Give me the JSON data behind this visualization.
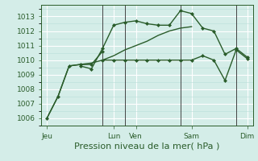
{
  "background_color": "#d4ede8",
  "grid_color_major": "#ffffff",
  "grid_color_minor": "#b8ddd8",
  "line_color": "#2a5c2a",
  "xlabel": "Pression niveau de la mer( hPa )",
  "xlabel_fontsize": 8,
  "yticks": [
    1006,
    1007,
    1008,
    1009,
    1010,
    1011,
    1012,
    1013
  ],
  "xtick_labels": [
    "Jeu",
    "Lun",
    "Ven",
    "Sam",
    "Dim"
  ],
  "xtick_positions": [
    0,
    6,
    8,
    13,
    18
  ],
  "xlim": [
    -0.5,
    18.5
  ],
  "ylim": [
    1005.5,
    1013.8
  ],
  "vline_positions": [
    5.0,
    7.0,
    12.0,
    17.0
  ],
  "vline_color": "#444444",
  "vline_lw": 0.7,
  "series": [
    {
      "x": [
        0,
        1,
        2,
        3,
        4,
        5,
        6,
        7,
        8,
        9,
        10,
        11,
        12,
        13
      ],
      "y": [
        1006.0,
        1007.5,
        1009.6,
        1009.7,
        1009.8,
        1010.0,
        1010.3,
        1010.7,
        1011.0,
        1011.3,
        1011.7,
        1012.0,
        1012.2,
        1012.3
      ],
      "marker": null,
      "markersize": 0,
      "linewidth": 1.0
    },
    {
      "x": [
        3,
        4,
        5,
        6,
        7,
        8,
        9,
        10,
        11,
        12,
        13,
        14,
        15,
        16,
        17,
        18
      ],
      "y": [
        1009.6,
        1009.4,
        1010.8,
        1012.4,
        1012.6,
        1012.7,
        1012.5,
        1012.4,
        1012.4,
        1013.4,
        1013.2,
        1012.2,
        1012.0,
        1010.4,
        1010.8,
        1010.2
      ],
      "marker": "D",
      "markersize": 2.0,
      "linewidth": 1.0
    },
    {
      "x": [
        5,
        6,
        7,
        8,
        9,
        10,
        11,
        12,
        13,
        14,
        15,
        16,
        17,
        18
      ],
      "y": [
        1010.0,
        1010.0,
        1010.0,
        1010.0,
        1010.0,
        1010.0,
        1010.0,
        1010.0,
        1010.0,
        1010.3,
        1010.0,
        1008.6,
        1010.7,
        1010.1
      ],
      "marker": "D",
      "markersize": 2.0,
      "linewidth": 1.0
    },
    {
      "x": [
        0,
        1,
        2,
        3,
        4,
        5
      ],
      "y": [
        1006.0,
        1007.5,
        1009.6,
        1009.7,
        1009.7,
        1010.6
      ],
      "marker": "D",
      "markersize": 2.0,
      "linewidth": 1.0
    }
  ]
}
